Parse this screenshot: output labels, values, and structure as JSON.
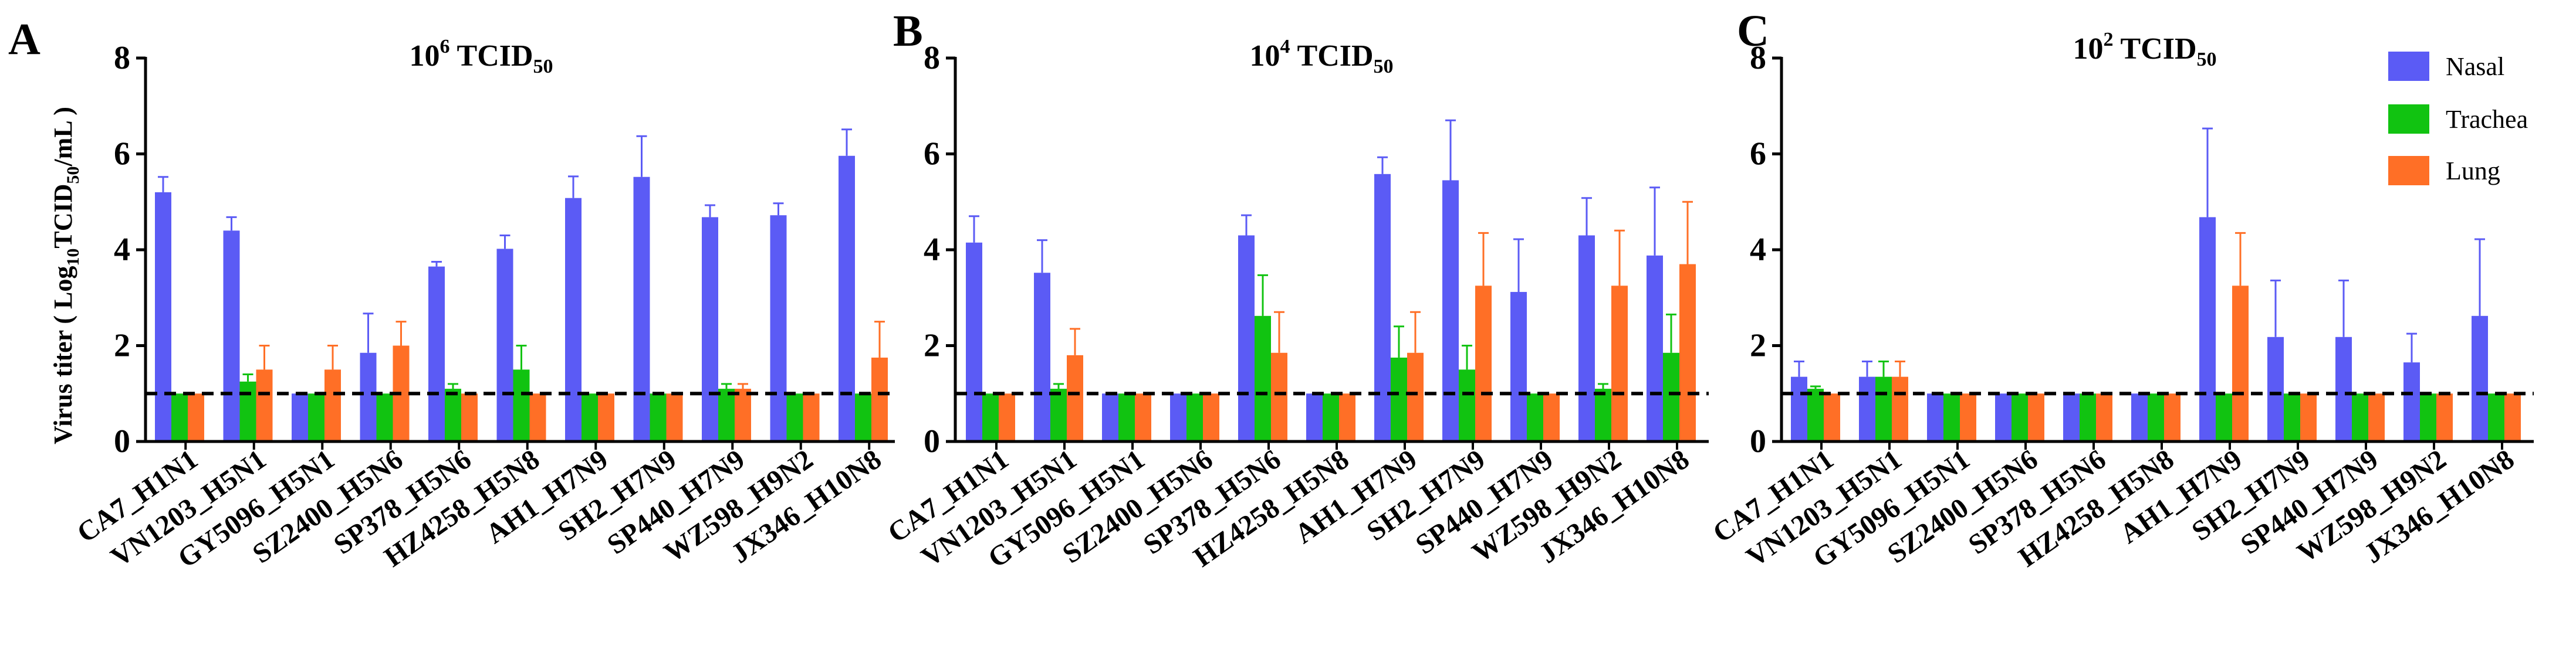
{
  "colors": {
    "nasal": "#5b5bf5",
    "trachea": "#11c311",
    "lung": "#ff6f26",
    "axis": "#000000"
  },
  "shared": {
    "ylabel_prefix": "Virus titer ( Log",
    "ylabel_sub": "10",
    "ylabel_mid": "TCID",
    "ylabel_sub2": "50",
    "ylabel_suffix": "/mL )",
    "legend": [
      "Nasal",
      "Trachea",
      "Lung"
    ],
    "detection_limit": 1.0
  },
  "chart_data": [
    {
      "type": "bar",
      "panel": "A",
      "title_prefix": "10",
      "title_sup": "6",
      "title_mid": " TCID",
      "title_sub": "50",
      "categories": [
        "CA7_H1N1",
        "VN1203_H5N1",
        "GY5096_H5N1",
        "SZ2400_H5N6",
        "SP378_H5N6",
        "HZ4258_H5N8",
        "AH1_H7N9",
        "SH2_H7N9",
        "SP440_H7N9",
        "WZ598_H9N2",
        "JX346_H10N8"
      ],
      "ylim": [
        0,
        8
      ],
      "yticks": [
        0,
        2,
        4,
        6,
        8
      ],
      "series": [
        {
          "name": "Nasal",
          "values": [
            5.2,
            4.4,
            1.0,
            1.85,
            3.65,
            4.02,
            5.08,
            5.52,
            4.68,
            4.72,
            5.96
          ],
          "errors": [
            0.32,
            0.28,
            0.0,
            0.82,
            0.1,
            0.28,
            0.45,
            0.85,
            0.25,
            0.25,
            0.55
          ]
        },
        {
          "name": "Trachea",
          "values": [
            1.0,
            1.25,
            1.0,
            1.0,
            1.1,
            1.5,
            1.0,
            1.0,
            1.1,
            1.0,
            1.0
          ],
          "errors": [
            0.0,
            0.15,
            0.0,
            0.0,
            0.1,
            0.5,
            0.0,
            0.0,
            0.1,
            0.0,
            0.0
          ]
        },
        {
          "name": "Lung",
          "values": [
            1.0,
            1.5,
            1.5,
            2.0,
            1.0,
            1.0,
            1.0,
            1.0,
            1.1,
            1.0,
            1.75
          ],
          "errors": [
            0.0,
            0.5,
            0.5,
            0.5,
            0.0,
            0.0,
            0.0,
            0.0,
            0.1,
            0.0,
            0.75
          ]
        }
      ]
    },
    {
      "type": "bar",
      "panel": "B",
      "title_prefix": "10",
      "title_sup": "4",
      "title_mid": " TCID",
      "title_sub": "50",
      "categories": [
        "CA7_H1N1",
        "VN1203_H5N1",
        "GY5096_H5N1",
        "SZ2400_H5N6",
        "SP378_H5N6",
        "HZ4258_H5N8",
        "AH1_H7N9",
        "SH2_H7N9",
        "SP440_H7N9",
        "WZ598_H9N2",
        "JX346_H10N8"
      ],
      "ylim": [
        0,
        8
      ],
      "yticks": [
        0,
        2,
        4,
        6,
        8
      ],
      "series": [
        {
          "name": "Nasal",
          "values": [
            4.15,
            3.52,
            1.0,
            1.0,
            4.3,
            1.0,
            5.58,
            5.45,
            3.12,
            4.3,
            3.88
          ],
          "errors": [
            0.55,
            0.68,
            0.0,
            0.0,
            0.42,
            0.0,
            0.35,
            1.25,
            1.1,
            0.78,
            1.42
          ]
        },
        {
          "name": "Trachea",
          "values": [
            1.0,
            1.1,
            1.0,
            1.0,
            2.62,
            1.0,
            1.75,
            1.5,
            1.0,
            1.1,
            1.85
          ],
          "errors": [
            0.0,
            0.1,
            0.0,
            0.0,
            0.85,
            0.0,
            0.65,
            0.5,
            0.0,
            0.1,
            0.8
          ]
        },
        {
          "name": "Lung",
          "values": [
            1.0,
            1.8,
            1.0,
            1.0,
            1.85,
            1.0,
            1.85,
            3.25,
            1.0,
            3.25,
            3.7
          ],
          "errors": [
            0.0,
            0.55,
            0.0,
            0.0,
            0.85,
            0.0,
            0.85,
            1.1,
            0.0,
            1.15,
            1.3
          ]
        }
      ]
    },
    {
      "type": "bar",
      "panel": "C",
      "title_prefix": "10",
      "title_sup": "2",
      "title_mid": " TCID",
      "title_sub": "50",
      "categories": [
        "CA7_H1N1",
        "VN1203_H5N1",
        "GY5096_H5N1",
        "SZ2400_H5N6",
        "SP378_H5N6",
        "HZ4258_H5N8",
        "AH1_H7N9",
        "SH2_H7N9",
        "SP440_H7N9",
        "WZ598_H9N2",
        "JX346_H10N8"
      ],
      "ylim": [
        0,
        8
      ],
      "yticks": [
        0,
        2,
        4,
        6,
        8
      ],
      "series": [
        {
          "name": "Nasal",
          "values": [
            1.35,
            1.35,
            1.0,
            1.0,
            1.0,
            1.0,
            4.68,
            2.18,
            2.18,
            1.65,
            2.62
          ],
          "errors": [
            0.32,
            0.32,
            0.0,
            0.0,
            0.0,
            0.0,
            1.85,
            1.18,
            1.18,
            0.6,
            1.6
          ]
        },
        {
          "name": "Trachea",
          "values": [
            1.1,
            1.35,
            1.0,
            1.0,
            1.0,
            1.0,
            1.0,
            1.0,
            1.0,
            1.0,
            1.0
          ],
          "errors": [
            0.05,
            0.32,
            0.0,
            0.0,
            0.0,
            0.0,
            0.0,
            0.0,
            0.0,
            0.0,
            0.0
          ]
        },
        {
          "name": "Lung",
          "values": [
            1.0,
            1.35,
            1.0,
            1.0,
            1.0,
            1.0,
            3.25,
            1.0,
            1.0,
            1.0,
            1.0
          ],
          "errors": [
            0.0,
            0.32,
            0.0,
            0.0,
            0.0,
            0.0,
            1.1,
            0.0,
            0.0,
            0.0,
            0.0
          ]
        }
      ]
    }
  ]
}
